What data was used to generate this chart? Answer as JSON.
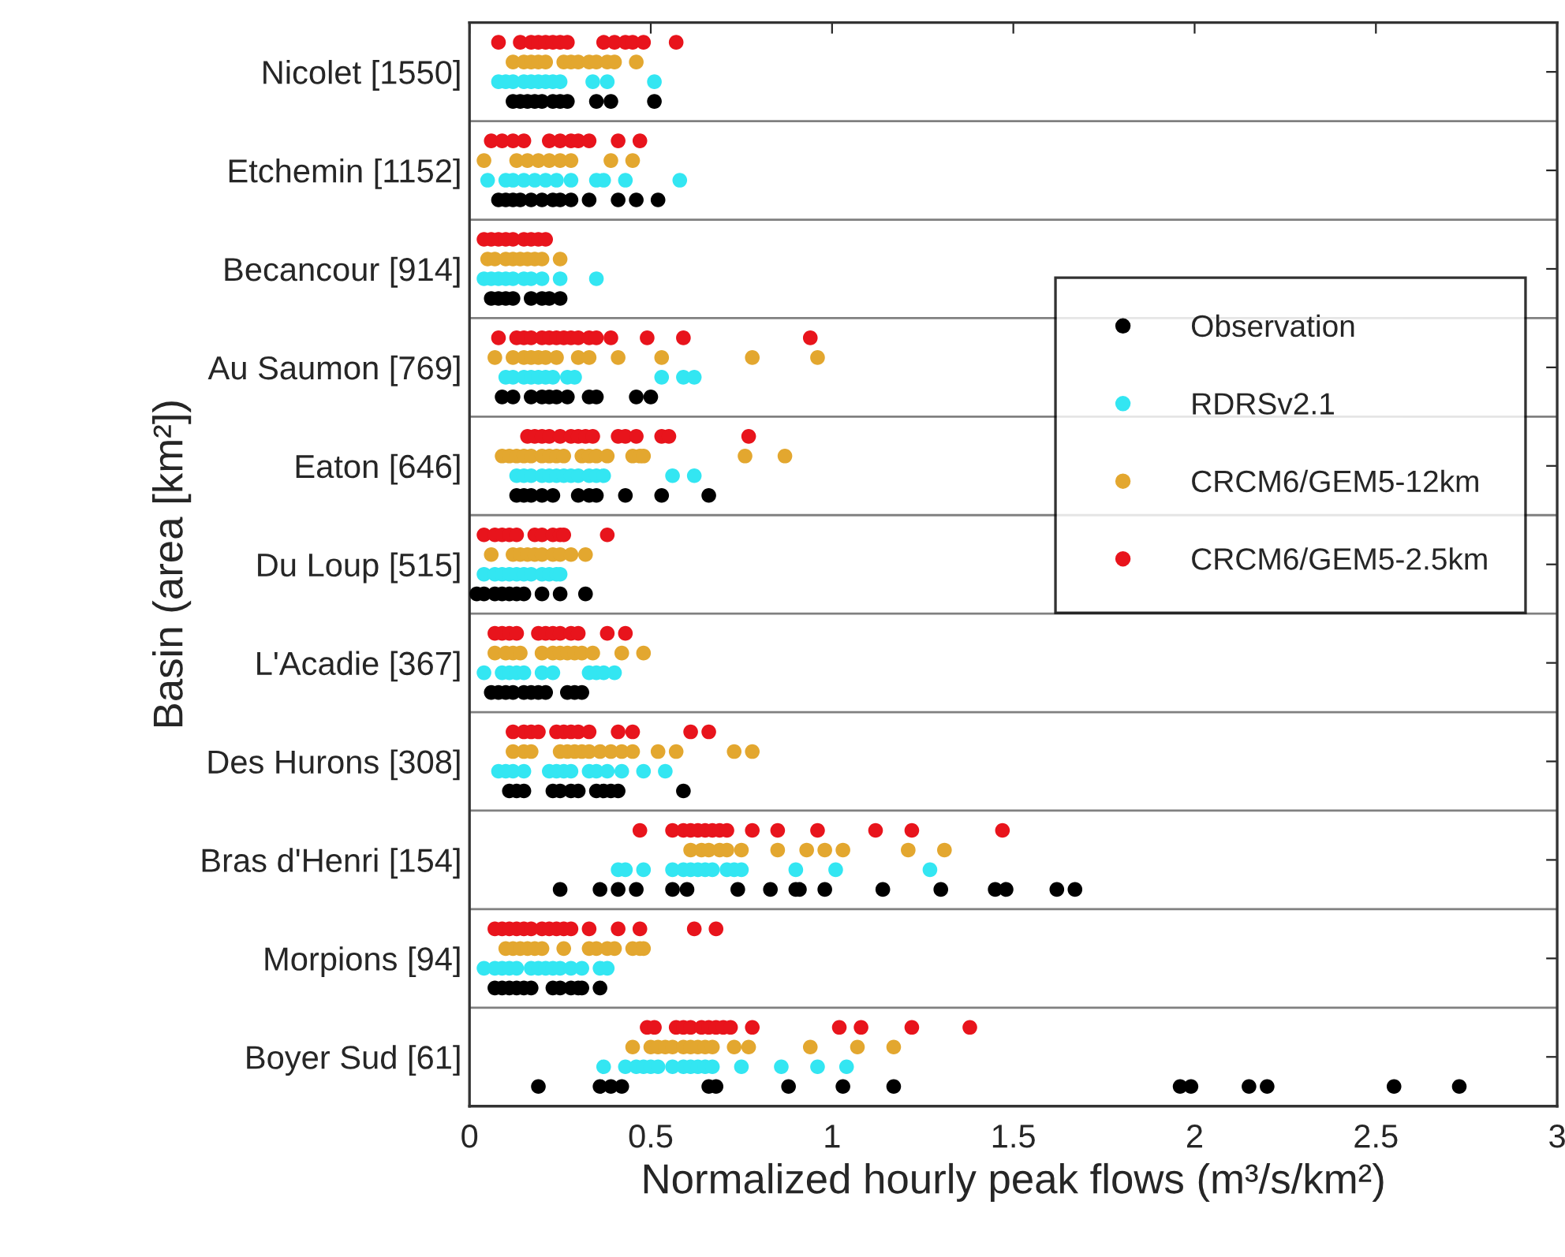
{
  "chart_data": {
    "type": "scatter",
    "orientation": "horizontal",
    "xlabel": "Normalized hourly peak flows (m³/s/km²)",
    "ylabel": "Basin (area [km²])",
    "xlim": [
      0,
      3
    ],
    "xticks": [
      0,
      0.5,
      1,
      1.5,
      2,
      2.5,
      3
    ],
    "categories": [
      "Nicolet [1550]",
      "Etchemin [1152]",
      "Becancour [914]",
      "Au Saumon [769]",
      "Eaton [646]",
      "Du Loup [515]",
      "L'Acadie [367]",
      "Des Hurons [308]",
      "Bras d'Henri [154]",
      "Morpions [94]",
      "Boyer Sud [61]"
    ],
    "grid": "y",
    "legend": "right",
    "marker": "circle",
    "series": [
      {
        "name": "Observation",
        "color": "#000000",
        "values": [
          0.12,
          0.14,
          0.16,
          0.18,
          0.2,
          0.23,
          0.25,
          0.27,
          0.35,
          0.39,
          0.51,
          0.08,
          0.1,
          0.12,
          0.14,
          0.17,
          0.2,
          0.23,
          0.25,
          0.28,
          0.33,
          0.41,
          0.46,
          0.52,
          0.06,
          0.08,
          0.1,
          0.12,
          0.17,
          0.2,
          0.22,
          0.25,
          0.09,
          0.12,
          0.17,
          0.2,
          0.22,
          0.24,
          0.27,
          0.33,
          0.35,
          0.46,
          0.5,
          0.13,
          0.15,
          0.17,
          0.2,
          0.23,
          0.3,
          0.33,
          0.35,
          0.43,
          0.53,
          0.66,
          0.02,
          0.04,
          0.07,
          0.09,
          0.11,
          0.13,
          0.15,
          0.2,
          0.25,
          0.32,
          0.06,
          0.08,
          0.1,
          0.12,
          0.15,
          0.17,
          0.19,
          0.21,
          0.27,
          0.29,
          0.31,
          0.11,
          0.13,
          0.15,
          0.23,
          0.25,
          0.28,
          0.3,
          0.35,
          0.37,
          0.39,
          0.41,
          0.59,
          0.25,
          0.36,
          0.41,
          0.46,
          0.56,
          0.6,
          0.74,
          0.83,
          0.9,
          0.91,
          0.98,
          1.14,
          1.3,
          1.45,
          1.48,
          1.62,
          1.67,
          0.07,
          0.09,
          0.11,
          0.13,
          0.15,
          0.17,
          0.23,
          0.25,
          0.28,
          0.3,
          0.31,
          0.36,
          0.19,
          0.36,
          0.39,
          0.42,
          0.66,
          0.68,
          0.88,
          1.03,
          1.17,
          1.96,
          1.99,
          2.15,
          2.2,
          2.55,
          2.73
        ],
        "x": [
          "Nicolet [1550]",
          "Nicolet [1550]",
          "Nicolet [1550]",
          "Nicolet [1550]",
          "Nicolet [1550]",
          "Nicolet [1550]",
          "Nicolet [1550]",
          "Nicolet [1550]",
          "Nicolet [1550]",
          "Nicolet [1550]",
          "Nicolet [1550]",
          "Etchemin [1152]",
          "Etchemin [1152]",
          "Etchemin [1152]",
          "Etchemin [1152]",
          "Etchemin [1152]",
          "Etchemin [1152]",
          "Etchemin [1152]",
          "Etchemin [1152]",
          "Etchemin [1152]",
          "Etchemin [1152]",
          "Etchemin [1152]",
          "Etchemin [1152]",
          "Etchemin [1152]",
          "Becancour [914]",
          "Becancour [914]",
          "Becancour [914]",
          "Becancour [914]",
          "Becancour [914]",
          "Becancour [914]",
          "Becancour [914]",
          "Becancour [914]",
          "Au Saumon [769]",
          "Au Saumon [769]",
          "Au Saumon [769]",
          "Au Saumon [769]",
          "Au Saumon [769]",
          "Au Saumon [769]",
          "Au Saumon [769]",
          "Au Saumon [769]",
          "Au Saumon [769]",
          "Au Saumon [769]",
          "Au Saumon [769]",
          "Eaton [646]",
          "Eaton [646]",
          "Eaton [646]",
          "Eaton [646]",
          "Eaton [646]",
          "Eaton [646]",
          "Eaton [646]",
          "Eaton [646]",
          "Eaton [646]",
          "Eaton [646]",
          "Eaton [646]",
          "Du Loup [515]",
          "Du Loup [515]",
          "Du Loup [515]",
          "Du Loup [515]",
          "Du Loup [515]",
          "Du Loup [515]",
          "Du Loup [515]",
          "Du Loup [515]",
          "Du Loup [515]",
          "Du Loup [515]",
          "L'Acadie [367]",
          "L'Acadie [367]",
          "L'Acadie [367]",
          "L'Acadie [367]",
          "L'Acadie [367]",
          "L'Acadie [367]",
          "L'Acadie [367]",
          "L'Acadie [367]",
          "L'Acadie [367]",
          "L'Acadie [367]",
          "L'Acadie [367]",
          "Des Hurons [308]",
          "Des Hurons [308]",
          "Des Hurons [308]",
          "Des Hurons [308]",
          "Des Hurons [308]",
          "Des Hurons [308]",
          "Des Hurons [308]",
          "Des Hurons [308]",
          "Des Hurons [308]",
          "Des Hurons [308]",
          "Des Hurons [308]",
          "Des Hurons [308]",
          "Bras d'Henri [154]",
          "Bras d'Henri [154]",
          "Bras d'Henri [154]",
          "Bras d'Henri [154]",
          "Bras d'Henri [154]",
          "Bras d'Henri [154]",
          "Bras d'Henri [154]",
          "Bras d'Henri [154]",
          "Bras d'Henri [154]",
          "Bras d'Henri [154]",
          "Bras d'Henri [154]",
          "Bras d'Henri [154]",
          "Bras d'Henri [154]",
          "Bras d'Henri [154]",
          "Bras d'Henri [154]",
          "Bras d'Henri [154]",
          "Bras d'Henri [154]",
          "Morpions [94]",
          "Morpions [94]",
          "Morpions [94]",
          "Morpions [94]",
          "Morpions [94]",
          "Morpions [94]",
          "Morpions [94]",
          "Morpions [94]",
          "Morpions [94]",
          "Morpions [94]",
          "Morpions [94]",
          "Morpions [94]",
          "Boyer Sud [61]",
          "Boyer Sud [61]",
          "Boyer Sud [61]",
          "Boyer Sud [61]",
          "Boyer Sud [61]",
          "Boyer Sud [61]",
          "Boyer Sud [61]",
          "Boyer Sud [61]",
          "Boyer Sud [61]",
          "Boyer Sud [61]",
          "Boyer Sud [61]",
          "Boyer Sud [61]",
          "Boyer Sud [61]",
          "Boyer Sud [61]",
          "Boyer Sud [61]"
        ]
      },
      {
        "name": "RDRSv2.1",
        "color": "#33e6f2",
        "values": [
          0.08,
          0.1,
          0.12,
          0.15,
          0.17,
          0.19,
          0.21,
          0.23,
          0.25,
          0.34,
          0.38,
          0.51,
          0.05,
          0.1,
          0.12,
          0.15,
          0.18,
          0.21,
          0.24,
          0.28,
          0.35,
          0.37,
          0.43,
          0.58,
          0.04,
          0.06,
          0.08,
          0.1,
          0.12,
          0.15,
          0.17,
          0.2,
          0.25,
          0.35,
          0.1,
          0.12,
          0.15,
          0.17,
          0.19,
          0.21,
          0.23,
          0.27,
          0.29,
          0.53,
          0.59,
          0.62,
          0.13,
          0.15,
          0.17,
          0.2,
          0.22,
          0.24,
          0.26,
          0.28,
          0.3,
          0.33,
          0.35,
          0.37,
          0.56,
          0.62,
          0.04,
          0.07,
          0.09,
          0.11,
          0.13,
          0.15,
          0.17,
          0.2,
          0.22,
          0.24,
          0.25,
          0.04,
          0.09,
          0.11,
          0.13,
          0.15,
          0.2,
          0.23,
          0.33,
          0.35,
          0.37,
          0.4,
          0.08,
          0.1,
          0.12,
          0.15,
          0.22,
          0.24,
          0.26,
          0.28,
          0.33,
          0.35,
          0.38,
          0.42,
          0.48,
          0.54,
          0.41,
          0.43,
          0.48,
          0.56,
          0.59,
          0.61,
          0.63,
          0.65,
          0.67,
          0.71,
          0.73,
          0.75,
          0.9,
          1.01,
          1.27,
          0.04,
          0.07,
          0.09,
          0.11,
          0.13,
          0.17,
          0.19,
          0.21,
          0.23,
          0.25,
          0.28,
          0.31,
          0.36,
          0.38,
          0.37,
          0.43,
          0.46,
          0.48,
          0.5,
          0.52,
          0.56,
          0.59,
          0.61,
          0.63,
          0.65,
          0.67,
          0.75,
          0.86,
          0.96,
          1.04
        ],
        "x": [
          "Nicolet [1550]",
          "Nicolet [1550]",
          "Nicolet [1550]",
          "Nicolet [1550]",
          "Nicolet [1550]",
          "Nicolet [1550]",
          "Nicolet [1550]",
          "Nicolet [1550]",
          "Nicolet [1550]",
          "Nicolet [1550]",
          "Nicolet [1550]",
          "Nicolet [1550]",
          "Etchemin [1152]",
          "Etchemin [1152]",
          "Etchemin [1152]",
          "Etchemin [1152]",
          "Etchemin [1152]",
          "Etchemin [1152]",
          "Etchemin [1152]",
          "Etchemin [1152]",
          "Etchemin [1152]",
          "Etchemin [1152]",
          "Etchemin [1152]",
          "Etchemin [1152]",
          "Becancour [914]",
          "Becancour [914]",
          "Becancour [914]",
          "Becancour [914]",
          "Becancour [914]",
          "Becancour [914]",
          "Becancour [914]",
          "Becancour [914]",
          "Becancour [914]",
          "Becancour [914]",
          "Au Saumon [769]",
          "Au Saumon [769]",
          "Au Saumon [769]",
          "Au Saumon [769]",
          "Au Saumon [769]",
          "Au Saumon [769]",
          "Au Saumon [769]",
          "Au Saumon [769]",
          "Au Saumon [769]",
          "Au Saumon [769]",
          "Au Saumon [769]",
          "Au Saumon [769]",
          "Eaton [646]",
          "Eaton [646]",
          "Eaton [646]",
          "Eaton [646]",
          "Eaton [646]",
          "Eaton [646]",
          "Eaton [646]",
          "Eaton [646]",
          "Eaton [646]",
          "Eaton [646]",
          "Eaton [646]",
          "Eaton [646]",
          "Eaton [646]",
          "Eaton [646]",
          "Du Loup [515]",
          "Du Loup [515]",
          "Du Loup [515]",
          "Du Loup [515]",
          "Du Loup [515]",
          "Du Loup [515]",
          "Du Loup [515]",
          "Du Loup [515]",
          "Du Loup [515]",
          "Du Loup [515]",
          "Du Loup [515]",
          "L'Acadie [367]",
          "L'Acadie [367]",
          "L'Acadie [367]",
          "L'Acadie [367]",
          "L'Acadie [367]",
          "L'Acadie [367]",
          "L'Acadie [367]",
          "L'Acadie [367]",
          "L'Acadie [367]",
          "L'Acadie [367]",
          "L'Acadie [367]",
          "Des Hurons [308]",
          "Des Hurons [308]",
          "Des Hurons [308]",
          "Des Hurons [308]",
          "Des Hurons [308]",
          "Des Hurons [308]",
          "Des Hurons [308]",
          "Des Hurons [308]",
          "Des Hurons [308]",
          "Des Hurons [308]",
          "Des Hurons [308]",
          "Des Hurons [308]",
          "Des Hurons [308]",
          "Des Hurons [308]",
          "Bras d'Henri [154]",
          "Bras d'Henri [154]",
          "Bras d'Henri [154]",
          "Bras d'Henri [154]",
          "Bras d'Henri [154]",
          "Bras d'Henri [154]",
          "Bras d'Henri [154]",
          "Bras d'Henri [154]",
          "Bras d'Henri [154]",
          "Bras d'Henri [154]",
          "Bras d'Henri [154]",
          "Bras d'Henri [154]",
          "Bras d'Henri [154]",
          "Bras d'Henri [154]",
          "Bras d'Henri [154]",
          "Morpions [94]",
          "Morpions [94]",
          "Morpions [94]",
          "Morpions [94]",
          "Morpions [94]",
          "Morpions [94]",
          "Morpions [94]",
          "Morpions [94]",
          "Morpions [94]",
          "Morpions [94]",
          "Morpions [94]",
          "Morpions [94]",
          "Morpions [94]",
          "Morpions [94]",
          "Boyer Sud [61]",
          "Boyer Sud [61]",
          "Boyer Sud [61]",
          "Boyer Sud [61]",
          "Boyer Sud [61]",
          "Boyer Sud [61]",
          "Boyer Sud [61]",
          "Boyer Sud [61]",
          "Boyer Sud [61]",
          "Boyer Sud [61]",
          "Boyer Sud [61]",
          "Boyer Sud [61]",
          "Boyer Sud [61]",
          "Boyer Sud [61]",
          "Boyer Sud [61]",
          "Boyer Sud [61]"
        ]
      },
      {
        "name": "CRCM6/GEM5-12km",
        "color": "#e3a72f",
        "values": [
          0.12,
          0.15,
          0.17,
          0.19,
          0.21,
          0.26,
          0.28,
          0.3,
          0.33,
          0.35,
          0.38,
          0.4,
          0.46,
          0.04,
          0.13,
          0.16,
          0.19,
          0.22,
          0.25,
          0.28,
          0.39,
          0.45,
          0.05,
          0.07,
          0.1,
          0.12,
          0.14,
          0.16,
          0.18,
          0.2,
          0.25,
          0.07,
          0.12,
          0.15,
          0.17,
          0.19,
          0.21,
          0.24,
          0.3,
          0.33,
          0.41,
          0.53,
          0.78,
          0.96,
          0.09,
          0.11,
          0.13,
          0.15,
          0.17,
          0.2,
          0.22,
          0.24,
          0.26,
          0.31,
          0.33,
          0.35,
          0.38,
          0.45,
          0.47,
          0.48,
          0.76,
          0.87,
          0.06,
          0.12,
          0.14,
          0.16,
          0.18,
          0.2,
          0.23,
          0.25,
          0.28,
          0.32,
          0.07,
          0.1,
          0.12,
          0.14,
          0.2,
          0.23,
          0.25,
          0.27,
          0.29,
          0.31,
          0.34,
          0.42,
          0.48,
          0.12,
          0.15,
          0.17,
          0.25,
          0.27,
          0.29,
          0.31,
          0.33,
          0.36,
          0.39,
          0.42,
          0.45,
          0.52,
          0.57,
          0.73,
          0.78,
          0.61,
          0.64,
          0.66,
          0.69,
          0.71,
          0.75,
          0.85,
          0.93,
          0.98,
          1.03,
          1.21,
          1.31,
          0.1,
          0.12,
          0.14,
          0.16,
          0.18,
          0.2,
          0.26,
          0.33,
          0.35,
          0.38,
          0.4,
          0.45,
          0.47,
          0.48,
          0.45,
          0.5,
          0.52,
          0.54,
          0.56,
          0.59,
          0.61,
          0.63,
          0.65,
          0.67,
          0.73,
          0.77,
          0.94,
          1.07,
          1.17
        ],
        "x": [
          "Nicolet [1550]",
          "Nicolet [1550]",
          "Nicolet [1550]",
          "Nicolet [1550]",
          "Nicolet [1550]",
          "Nicolet [1550]",
          "Nicolet [1550]",
          "Nicolet [1550]",
          "Nicolet [1550]",
          "Nicolet [1550]",
          "Nicolet [1550]",
          "Nicolet [1550]",
          "Nicolet [1550]",
          "Etchemin [1152]",
          "Etchemin [1152]",
          "Etchemin [1152]",
          "Etchemin [1152]",
          "Etchemin [1152]",
          "Etchemin [1152]",
          "Etchemin [1152]",
          "Etchemin [1152]",
          "Etchemin [1152]",
          "Becancour [914]",
          "Becancour [914]",
          "Becancour [914]",
          "Becancour [914]",
          "Becancour [914]",
          "Becancour [914]",
          "Becancour [914]",
          "Becancour [914]",
          "Becancour [914]",
          "Au Saumon [769]",
          "Au Saumon [769]",
          "Au Saumon [769]",
          "Au Saumon [769]",
          "Au Saumon [769]",
          "Au Saumon [769]",
          "Au Saumon [769]",
          "Au Saumon [769]",
          "Au Saumon [769]",
          "Au Saumon [769]",
          "Au Saumon [769]",
          "Au Saumon [769]",
          "Au Saumon [769]",
          "Eaton [646]",
          "Eaton [646]",
          "Eaton [646]",
          "Eaton [646]",
          "Eaton [646]",
          "Eaton [646]",
          "Eaton [646]",
          "Eaton [646]",
          "Eaton [646]",
          "Eaton [646]",
          "Eaton [646]",
          "Eaton [646]",
          "Eaton [646]",
          "Eaton [646]",
          "Eaton [646]",
          "Eaton [646]",
          "Eaton [646]",
          "Eaton [646]",
          "Du Loup [515]",
          "Du Loup [515]",
          "Du Loup [515]",
          "Du Loup [515]",
          "Du Loup [515]",
          "Du Loup [515]",
          "Du Loup [515]",
          "Du Loup [515]",
          "Du Loup [515]",
          "Du Loup [515]",
          "L'Acadie [367]",
          "L'Acadie [367]",
          "L'Acadie [367]",
          "L'Acadie [367]",
          "L'Acadie [367]",
          "L'Acadie [367]",
          "L'Acadie [367]",
          "L'Acadie [367]",
          "L'Acadie [367]",
          "L'Acadie [367]",
          "L'Acadie [367]",
          "L'Acadie [367]",
          "L'Acadie [367]",
          "Des Hurons [308]",
          "Des Hurons [308]",
          "Des Hurons [308]",
          "Des Hurons [308]",
          "Des Hurons [308]",
          "Des Hurons [308]",
          "Des Hurons [308]",
          "Des Hurons [308]",
          "Des Hurons [308]",
          "Des Hurons [308]",
          "Des Hurons [308]",
          "Des Hurons [308]",
          "Des Hurons [308]",
          "Des Hurons [308]",
          "Des Hurons [308]",
          "Des Hurons [308]",
          "Bras d'Henri [154]",
          "Bras d'Henri [154]",
          "Bras d'Henri [154]",
          "Bras d'Henri [154]",
          "Bras d'Henri [154]",
          "Bras d'Henri [154]",
          "Bras d'Henri [154]",
          "Bras d'Henri [154]",
          "Bras d'Henri [154]",
          "Bras d'Henri [154]",
          "Bras d'Henri [154]",
          "Bras d'Henri [154]",
          "Morpions [94]",
          "Morpions [94]",
          "Morpions [94]",
          "Morpions [94]",
          "Morpions [94]",
          "Morpions [94]",
          "Morpions [94]",
          "Morpions [94]",
          "Morpions [94]",
          "Morpions [94]",
          "Morpions [94]",
          "Morpions [94]",
          "Morpions [94]",
          "Morpions [94]",
          "Boyer Sud [61]",
          "Boyer Sud [61]",
          "Boyer Sud [61]",
          "Boyer Sud [61]",
          "Boyer Sud [61]",
          "Boyer Sud [61]",
          "Boyer Sud [61]",
          "Boyer Sud [61]",
          "Boyer Sud [61]",
          "Boyer Sud [61]",
          "Boyer Sud [61]",
          "Boyer Sud [61]",
          "Boyer Sud [61]",
          "Boyer Sud [61]",
          "Boyer Sud [61]"
        ]
      },
      {
        "name": "CRCM6/GEM5-2.5km",
        "color": "#e8141c",
        "values": [
          0.08,
          0.14,
          0.17,
          0.19,
          0.21,
          0.23,
          0.25,
          0.27,
          0.37,
          0.4,
          0.43,
          0.45,
          0.48,
          0.57,
          0.06,
          0.09,
          0.12,
          0.15,
          0.22,
          0.25,
          0.28,
          0.3,
          0.33,
          0.41,
          0.47,
          0.04,
          0.06,
          0.08,
          0.1,
          0.12,
          0.15,
          0.17,
          0.19,
          0.21,
          0.08,
          0.13,
          0.15,
          0.17,
          0.2,
          0.22,
          0.24,
          0.26,
          0.28,
          0.3,
          0.33,
          0.35,
          0.39,
          0.49,
          0.59,
          0.94,
          0.16,
          0.18,
          0.2,
          0.22,
          0.25,
          0.28,
          0.3,
          0.32,
          0.34,
          0.41,
          0.43,
          0.46,
          0.53,
          0.55,
          0.77,
          0.04,
          0.07,
          0.09,
          0.11,
          0.13,
          0.18,
          0.2,
          0.23,
          0.25,
          0.26,
          0.38,
          0.07,
          0.09,
          0.11,
          0.13,
          0.19,
          0.21,
          0.23,
          0.25,
          0.28,
          0.3,
          0.38,
          0.43,
          0.12,
          0.15,
          0.17,
          0.19,
          0.24,
          0.26,
          0.28,
          0.3,
          0.33,
          0.41,
          0.45,
          0.61,
          0.66,
          0.47,
          0.56,
          0.59,
          0.61,
          0.63,
          0.65,
          0.67,
          0.69,
          0.71,
          0.78,
          0.85,
          0.96,
          1.12,
          1.22,
          1.47,
          0.07,
          0.09,
          0.11,
          0.13,
          0.15,
          0.17,
          0.2,
          0.22,
          0.24,
          0.26,
          0.28,
          0.33,
          0.41,
          0.47,
          0.62,
          0.68,
          0.49,
          0.51,
          0.57,
          0.59,
          0.61,
          0.64,
          0.66,
          0.68,
          0.7,
          0.72,
          0.78,
          1.02,
          1.08,
          1.22,
          1.38
        ],
        "x": [
          "Nicolet [1550]",
          "Nicolet [1550]",
          "Nicolet [1550]",
          "Nicolet [1550]",
          "Nicolet [1550]",
          "Nicolet [1550]",
          "Nicolet [1550]",
          "Nicolet [1550]",
          "Nicolet [1550]",
          "Nicolet [1550]",
          "Nicolet [1550]",
          "Nicolet [1550]",
          "Nicolet [1550]",
          "Nicolet [1550]",
          "Etchemin [1152]",
          "Etchemin [1152]",
          "Etchemin [1152]",
          "Etchemin [1152]",
          "Etchemin [1152]",
          "Etchemin [1152]",
          "Etchemin [1152]",
          "Etchemin [1152]",
          "Etchemin [1152]",
          "Etchemin [1152]",
          "Etchemin [1152]",
          "Becancour [914]",
          "Becancour [914]",
          "Becancour [914]",
          "Becancour [914]",
          "Becancour [914]",
          "Becancour [914]",
          "Becancour [914]",
          "Becancour [914]",
          "Becancour [914]",
          "Au Saumon [769]",
          "Au Saumon [769]",
          "Au Saumon [769]",
          "Au Saumon [769]",
          "Au Saumon [769]",
          "Au Saumon [769]",
          "Au Saumon [769]",
          "Au Saumon [769]",
          "Au Saumon [769]",
          "Au Saumon [769]",
          "Au Saumon [769]",
          "Au Saumon [769]",
          "Au Saumon [769]",
          "Au Saumon [769]",
          "Au Saumon [769]",
          "Au Saumon [769]",
          "Eaton [646]",
          "Eaton [646]",
          "Eaton [646]",
          "Eaton [646]",
          "Eaton [646]",
          "Eaton [646]",
          "Eaton [646]",
          "Eaton [646]",
          "Eaton [646]",
          "Eaton [646]",
          "Eaton [646]",
          "Eaton [646]",
          "Eaton [646]",
          "Eaton [646]",
          "Eaton [646]",
          "Du Loup [515]",
          "Du Loup [515]",
          "Du Loup [515]",
          "Du Loup [515]",
          "Du Loup [515]",
          "Du Loup [515]",
          "Du Loup [515]",
          "Du Loup [515]",
          "Du Loup [515]",
          "Du Loup [515]",
          "Du Loup [515]",
          "L'Acadie [367]",
          "L'Acadie [367]",
          "L'Acadie [367]",
          "L'Acadie [367]",
          "L'Acadie [367]",
          "L'Acadie [367]",
          "L'Acadie [367]",
          "L'Acadie [367]",
          "L'Acadie [367]",
          "L'Acadie [367]",
          "L'Acadie [367]",
          "L'Acadie [367]",
          "Des Hurons [308]",
          "Des Hurons [308]",
          "Des Hurons [308]",
          "Des Hurons [308]",
          "Des Hurons [308]",
          "Des Hurons [308]",
          "Des Hurons [308]",
          "Des Hurons [308]",
          "Des Hurons [308]",
          "Des Hurons [308]",
          "Des Hurons [308]",
          "Des Hurons [308]",
          "Des Hurons [308]",
          "Bras d'Henri [154]",
          "Bras d'Henri [154]",
          "Bras d'Henri [154]",
          "Bras d'Henri [154]",
          "Bras d'Henri [154]",
          "Bras d'Henri [154]",
          "Bras d'Henri [154]",
          "Bras d'Henri [154]",
          "Bras d'Henri [154]",
          "Bras d'Henri [154]",
          "Bras d'Henri [154]",
          "Bras d'Henri [154]",
          "Bras d'Henri [154]",
          "Bras d'Henri [154]",
          "Bras d'Henri [154]",
          "Morpions [94]",
          "Morpions [94]",
          "Morpions [94]",
          "Morpions [94]",
          "Morpions [94]",
          "Morpions [94]",
          "Morpions [94]",
          "Morpions [94]",
          "Morpions [94]",
          "Morpions [94]",
          "Morpions [94]",
          "Morpions [94]",
          "Morpions [94]",
          "Morpions [94]",
          "Morpions [94]",
          "Morpions [94]",
          "Boyer Sud [61]",
          "Boyer Sud [61]",
          "Boyer Sud [61]",
          "Boyer Sud [61]",
          "Boyer Sud [61]",
          "Boyer Sud [61]",
          "Boyer Sud [61]",
          "Boyer Sud [61]",
          "Boyer Sud [61]",
          "Boyer Sud [61]",
          "Boyer Sud [61]",
          "Boyer Sud [61]",
          "Boyer Sud [61]",
          "Boyer Sud [61]",
          "Boyer Sud [61]"
        ]
      }
    ]
  }
}
